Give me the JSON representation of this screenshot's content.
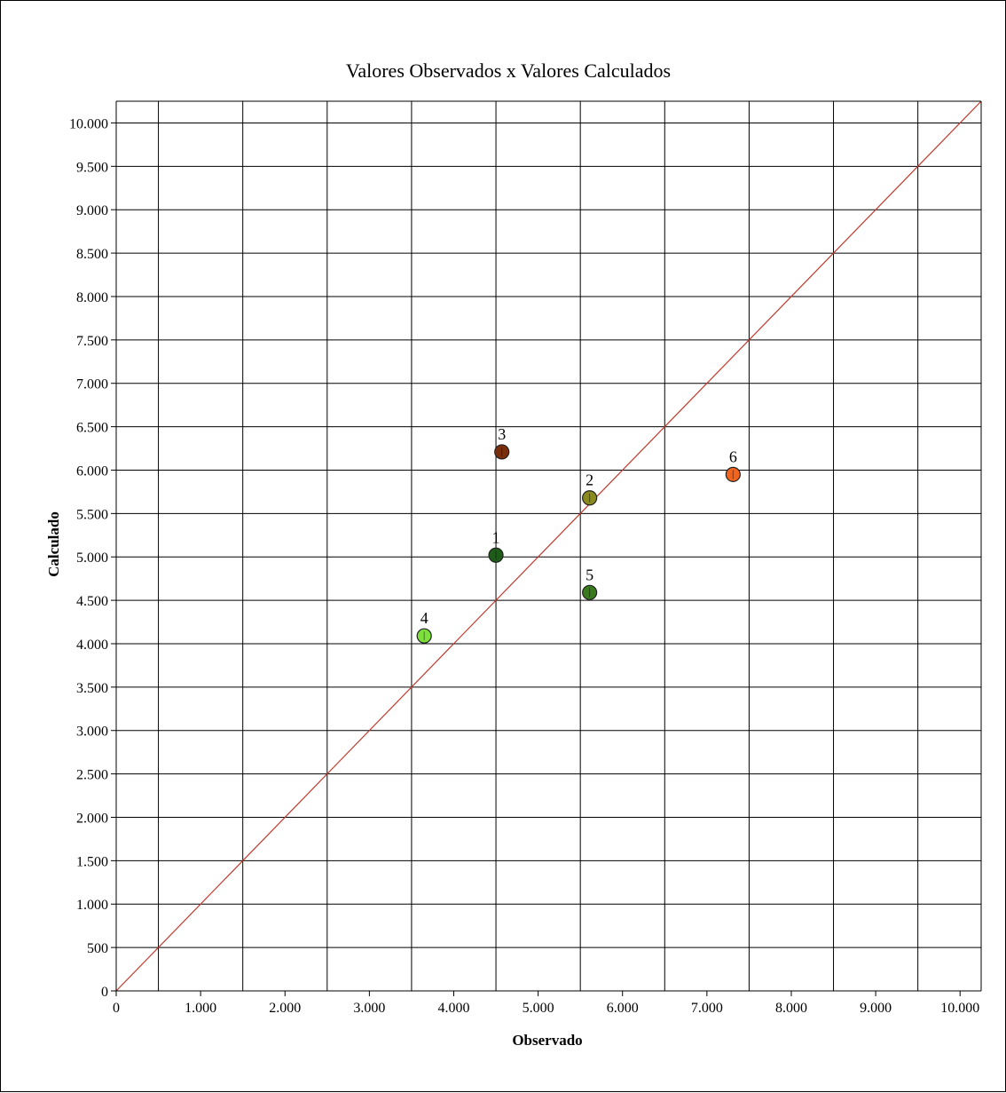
{
  "chart_data": {
    "type": "scatter",
    "title": "Valores Observados x Valores Calculados",
    "xlabel": "Observado",
    "ylabel": "Calculado",
    "xlim": [
      0,
      10250
    ],
    "ylim": [
      0,
      10250
    ],
    "x_ticks": [
      0,
      1000,
      2000,
      3000,
      4000,
      5000,
      6000,
      7000,
      8000,
      9000,
      10000
    ],
    "x_tick_labels": [
      "0",
      "1.000",
      "2.000",
      "3.000",
      "4.000",
      "5.000",
      "6.000",
      "7.000",
      "8.000",
      "9.000",
      "10.000"
    ],
    "y_ticks": [
      0,
      500,
      1000,
      1500,
      2000,
      2500,
      3000,
      3500,
      4000,
      4500,
      5000,
      5500,
      6000,
      6500,
      7000,
      7500,
      8000,
      8500,
      9000,
      9500,
      10000
    ],
    "y_tick_labels": [
      "0",
      "500",
      "1.000",
      "1.500",
      "2.000",
      "2.500",
      "3.000",
      "3.500",
      "4.000",
      "4.500",
      "5.000",
      "5.500",
      "6.000",
      "6.500",
      "7.000",
      "7.500",
      "8.000",
      "8.500",
      "9.000",
      "9.500",
      "10.000"
    ],
    "grid": true,
    "grid_step": 500,
    "grid_x_lines": [
      500,
      1500,
      2500,
      3500,
      4500,
      5500,
      6500,
      7500,
      8500,
      9500
    ],
    "grid_y_lines": [
      500,
      1000,
      1500,
      2000,
      2500,
      3000,
      3500,
      4000,
      4500,
      5000,
      5500,
      6000,
      6500,
      7000,
      7500,
      8000,
      8500,
      9000,
      9500,
      10000
    ],
    "reference_line": {
      "type": "identity",
      "color": "#c0392b"
    },
    "points": [
      {
        "label": "1",
        "x": 4500,
        "y": 5020,
        "color": "#1f5c1a"
      },
      {
        "label": "2",
        "x": 5610,
        "y": 5680,
        "color": "#8a8a1e"
      },
      {
        "label": "3",
        "x": 4570,
        "y": 6210,
        "color": "#7a2e0b"
      },
      {
        "label": "4",
        "x": 3650,
        "y": 4090,
        "color": "#7ee03a"
      },
      {
        "label": "5",
        "x": 5610,
        "y": 4590,
        "color": "#3a7a1e"
      },
      {
        "label": "6",
        "x": 7310,
        "y": 5950,
        "color": "#f0641e"
      }
    ]
  }
}
